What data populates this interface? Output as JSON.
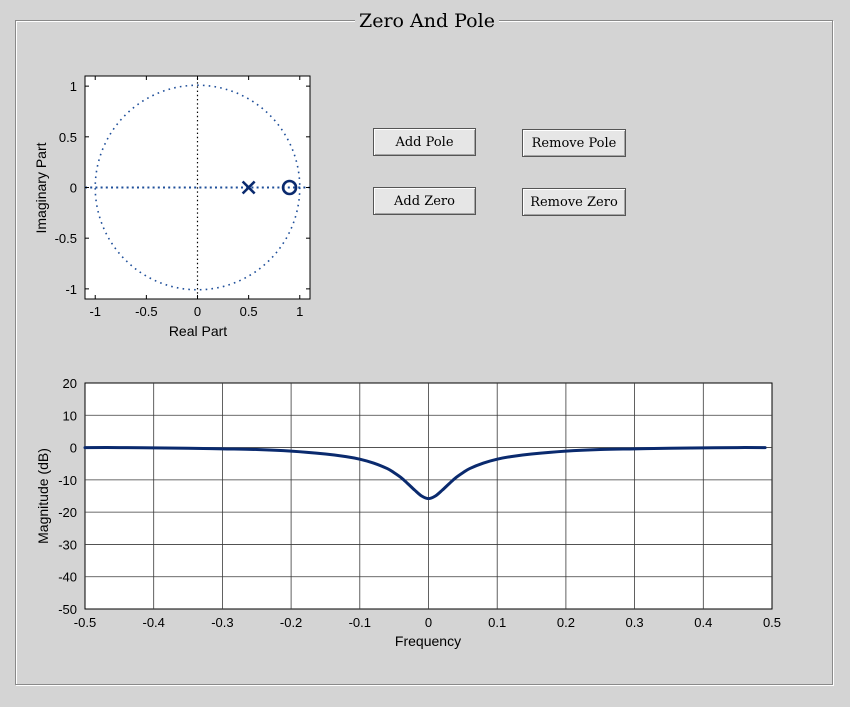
{
  "panel": {
    "title": "Zero And Pole"
  },
  "buttons": {
    "add_pole": "Add Pole",
    "remove_pole": "Remove Pole",
    "add_zero": "Add Zero",
    "remove_zero": "Remove Zero"
  },
  "colors": {
    "background": "#d4d4d4",
    "plot_line": "#0a2a6e",
    "marker": "#0a2a6e",
    "unit_circle": "#1f4f9a"
  },
  "chart_data": [
    {
      "type": "scatter",
      "title": "",
      "xlabel": "Real Part",
      "ylabel": "Imaginary Part",
      "xlim": [
        -1.1,
        1.1
      ],
      "ylim": [
        -1.1,
        1.1
      ],
      "x_ticks": [
        "-1",
        "-0.5",
        "0",
        "0.5",
        "1"
      ],
      "y_ticks": [
        "1",
        "0.5",
        "0",
        "-0.5",
        "-1"
      ],
      "grid": false,
      "unit_circle": true,
      "poles": [
        {
          "re": 0.5,
          "im": 0
        }
      ],
      "zeros": [
        {
          "re": 0.9,
          "im": 0
        }
      ]
    },
    {
      "type": "line",
      "title": "",
      "xlabel": "Frequency",
      "ylabel": "Magnitude (dB)",
      "xlim": [
        -0.5,
        0.5
      ],
      "ylim": [
        -50,
        20
      ],
      "x_ticks": [
        "-0.5",
        "-0.4",
        "-0.3",
        "-0.2",
        "-0.1",
        "0",
        "0.1",
        "0.2",
        "0.3",
        "0.4",
        "0.5"
      ],
      "y_ticks": [
        "20",
        "10",
        "0",
        "-10",
        "-20",
        "-30",
        "-40",
        "-50"
      ],
      "grid": true,
      "series": [
        {
          "x": [
            -0.5,
            -0.45,
            -0.4,
            -0.35,
            -0.3,
            -0.25,
            -0.2,
            -0.15,
            -0.12,
            -0.1,
            -0.08,
            -0.06,
            -0.05,
            -0.04,
            -0.03,
            -0.02,
            -0.01,
            0,
            0.01,
            0.02,
            0.03,
            0.04,
            0.05,
            0.06,
            0.08,
            0.1,
            0.12,
            0.15,
            0.2,
            0.25,
            0.3,
            0.35,
            0.4,
            0.45,
            0.49
          ],
          "values": [
            0.0,
            0.0,
            -0.1,
            -0.2,
            -0.4,
            -0.6,
            -1.1,
            -2.0,
            -2.8,
            -3.6,
            -4.8,
            -6.5,
            -7.8,
            -9.3,
            -11.2,
            -13.2,
            -15.0,
            -15.8,
            -15.0,
            -13.2,
            -11.2,
            -9.3,
            -7.8,
            -6.5,
            -4.8,
            -3.6,
            -2.8,
            -2.0,
            -1.1,
            -0.6,
            -0.4,
            -0.2,
            -0.1,
            0.0,
            0.0
          ]
        }
      ]
    }
  ]
}
